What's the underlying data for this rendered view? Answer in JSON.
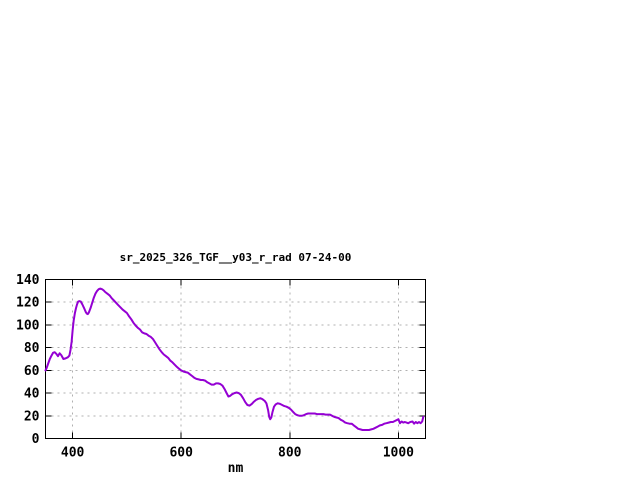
{
  "page": {
    "background": "#ffffff",
    "border_color": "#000000",
    "grid_color": "#b0b0b0",
    "text_color": "#000000"
  },
  "chart_data": {
    "type": "line",
    "title": "sr_2025_326_TGF__y03_r_rad 07-24-00",
    "xlabel": "nm",
    "ylabel": "",
    "xlim": [
      350,
      1050
    ],
    "ylim": [
      0,
      140
    ],
    "xticks": [
      400,
      600,
      800,
      1000
    ],
    "yticks": [
      0,
      20,
      40,
      60,
      80,
      100,
      120,
      140
    ],
    "grid": true,
    "legend_position": "none",
    "series": [
      {
        "name": "sr_2025_326_TGF__y03_r_rad",
        "color": "#9400d3",
        "points": [
          [
            350,
            60
          ],
          [
            352,
            62
          ],
          [
            355,
            66
          ],
          [
            358,
            70
          ],
          [
            361,
            73
          ],
          [
            364,
            75.5
          ],
          [
            367,
            76
          ],
          [
            370,
            74.5
          ],
          [
            373,
            72.5
          ],
          [
            376,
            75
          ],
          [
            379,
            73.5
          ],
          [
            383,
            70
          ],
          [
            387,
            70.5
          ],
          [
            391,
            71.5
          ],
          [
            394,
            73
          ],
          [
            396,
            78
          ],
          [
            398,
            85
          ],
          [
            400,
            95
          ],
          [
            402,
            104
          ],
          [
            404,
            110
          ],
          [
            406,
            114.5
          ],
          [
            408,
            118
          ],
          [
            410,
            120.5
          ],
          [
            412,
            121
          ],
          [
            415,
            120.5
          ],
          [
            418,
            118
          ],
          [
            421,
            115
          ],
          [
            424,
            111.5
          ],
          [
            426,
            110
          ],
          [
            428,
            109.5
          ],
          [
            430,
            111
          ],
          [
            433,
            115
          ],
          [
            436,
            119.5
          ],
          [
            439,
            124
          ],
          [
            442,
            127.5
          ],
          [
            445,
            130
          ],
          [
            448,
            131.5
          ],
          [
            451,
            132
          ],
          [
            454,
            131.5
          ],
          [
            457,
            130.5
          ],
          [
            460,
            129
          ],
          [
            464,
            127.5
          ],
          [
            468,
            126
          ],
          [
            472,
            123.5
          ],
          [
            476,
            121.5
          ],
          [
            480,
            119.5
          ],
          [
            484,
            117.5
          ],
          [
            488,
            115.5
          ],
          [
            492,
            113.5
          ],
          [
            496,
            112
          ],
          [
            500,
            110.5
          ],
          [
            504,
            107.5
          ],
          [
            508,
            105
          ],
          [
            512,
            102
          ],
          [
            516,
            99.5
          ],
          [
            520,
            97.5
          ],
          [
            524,
            96
          ],
          [
            528,
            93.5
          ],
          [
            532,
            92.5
          ],
          [
            536,
            92
          ],
          [
            540,
            90.5
          ],
          [
            544,
            89.5
          ],
          [
            548,
            87.5
          ],
          [
            552,
            84.5
          ],
          [
            556,
            81.5
          ],
          [
            560,
            78.5
          ],
          [
            564,
            76
          ],
          [
            568,
            74
          ],
          [
            572,
            72.5
          ],
          [
            576,
            71
          ],
          [
            580,
            68.5
          ],
          [
            584,
            67
          ],
          [
            588,
            65
          ],
          [
            592,
            63
          ],
          [
            596,
            61.5
          ],
          [
            600,
            60
          ],
          [
            604,
            59
          ],
          [
            608,
            58.5
          ],
          [
            612,
            58
          ],
          [
            616,
            56.5
          ],
          [
            620,
            55
          ],
          [
            624,
            53.5
          ],
          [
            628,
            52.5
          ],
          [
            632,
            52
          ],
          [
            636,
            51.5
          ],
          [
            640,
            51.5
          ],
          [
            644,
            51
          ],
          [
            648,
            49.5
          ],
          [
            652,
            48.5
          ],
          [
            656,
            47.5
          ],
          [
            660,
            47.5
          ],
          [
            664,
            48.5
          ],
          [
            668,
            48.5
          ],
          [
            672,
            48
          ],
          [
            676,
            46.5
          ],
          [
            680,
            43.5
          ],
          [
            683,
            40.5
          ],
          [
            687,
            37
          ],
          [
            690,
            37.5
          ],
          [
            694,
            39
          ],
          [
            698,
            40
          ],
          [
            702,
            40.5
          ],
          [
            706,
            40
          ],
          [
            710,
            38.5
          ],
          [
            714,
            35.5
          ],
          [
            718,
            32
          ],
          [
            722,
            29.5
          ],
          [
            726,
            29
          ],
          [
            730,
            30.5
          ],
          [
            734,
            32.5
          ],
          [
            738,
            34
          ],
          [
            742,
            35
          ],
          [
            746,
            35.5
          ],
          [
            750,
            34.5
          ],
          [
            754,
            33
          ],
          [
            757,
            31
          ],
          [
            760,
            25
          ],
          [
            762,
            19
          ],
          [
            764,
            17
          ],
          [
            766,
            18.5
          ],
          [
            768,
            23
          ],
          [
            771,
            28
          ],
          [
            774,
            30
          ],
          [
            778,
            31
          ],
          [
            782,
            30.5
          ],
          [
            786,
            29.5
          ],
          [
            790,
            28.5
          ],
          [
            794,
            28
          ],
          [
            798,
            27
          ],
          [
            802,
            25.5
          ],
          [
            806,
            23.5
          ],
          [
            810,
            21.5
          ],
          [
            814,
            20.5
          ],
          [
            818,
            20
          ],
          [
            822,
            20
          ],
          [
            826,
            20.5
          ],
          [
            830,
            21.5
          ],
          [
            834,
            22
          ],
          [
            838,
            22
          ],
          [
            842,
            22
          ],
          [
            846,
            22
          ],
          [
            850,
            21.5
          ],
          [
            854,
            21.5
          ],
          [
            858,
            21.5
          ],
          [
            862,
            21.5
          ],
          [
            866,
            21
          ],
          [
            870,
            21
          ],
          [
            874,
            21
          ],
          [
            878,
            20
          ],
          [
            882,
            19
          ],
          [
            886,
            18.5
          ],
          [
            890,
            18
          ],
          [
            894,
            16.5
          ],
          [
            898,
            15.5
          ],
          [
            902,
            14
          ],
          [
            906,
            13.5
          ],
          [
            910,
            13
          ],
          [
            914,
            13
          ],
          [
            918,
            11.5
          ],
          [
            922,
            10
          ],
          [
            926,
            8.5
          ],
          [
            930,
            8
          ],
          [
            934,
            7.5
          ],
          [
            938,
            7.5
          ],
          [
            942,
            7.5
          ],
          [
            946,
            7.5
          ],
          [
            950,
            8
          ],
          [
            954,
            8.5
          ],
          [
            958,
            9.5
          ],
          [
            962,
            10.5
          ],
          [
            966,
            11.5
          ],
          [
            970,
            12
          ],
          [
            974,
            13
          ],
          [
            978,
            13.5
          ],
          [
            982,
            14
          ],
          [
            986,
            14.5
          ],
          [
            990,
            14.5
          ],
          [
            994,
            15.5
          ],
          [
            998,
            16.5
          ],
          [
            1000,
            17
          ],
          [
            1003,
            13.5
          ],
          [
            1006,
            15
          ],
          [
            1009,
            14
          ],
          [
            1012,
            14.5
          ],
          [
            1015,
            14
          ],
          [
            1018,
            13.5
          ],
          [
            1022,
            14.5
          ],
          [
            1026,
            15
          ],
          [
            1029,
            13
          ],
          [
            1032,
            14.5
          ],
          [
            1035,
            13.5
          ],
          [
            1038,
            14.5
          ],
          [
            1041,
            13.5
          ],
          [
            1044,
            15
          ],
          [
            1046,
            19
          ]
        ]
      }
    ]
  }
}
